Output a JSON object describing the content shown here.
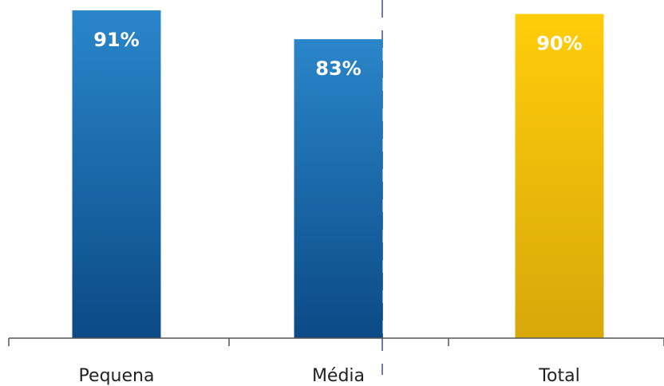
{
  "chart_data": {
    "type": "bar",
    "categories": [
      "Pequena",
      "Média",
      "Total"
    ],
    "values": [
      91,
      83,
      90
    ],
    "value_labels": [
      "91%",
      "83%",
      "90%"
    ],
    "ylim": [
      0,
      100
    ],
    "grid": false,
    "legend": "none",
    "colors": {
      "blue_top": "#2a86c9",
      "blue_bottom": "#0b4a86",
      "gold_top": "#ffcd0a",
      "gold_bottom": "#d8a70a",
      "axis": "#555555",
      "divider": "#6f7aa8"
    },
    "bar_colors": [
      "blue",
      "blue",
      "gold"
    ]
  }
}
